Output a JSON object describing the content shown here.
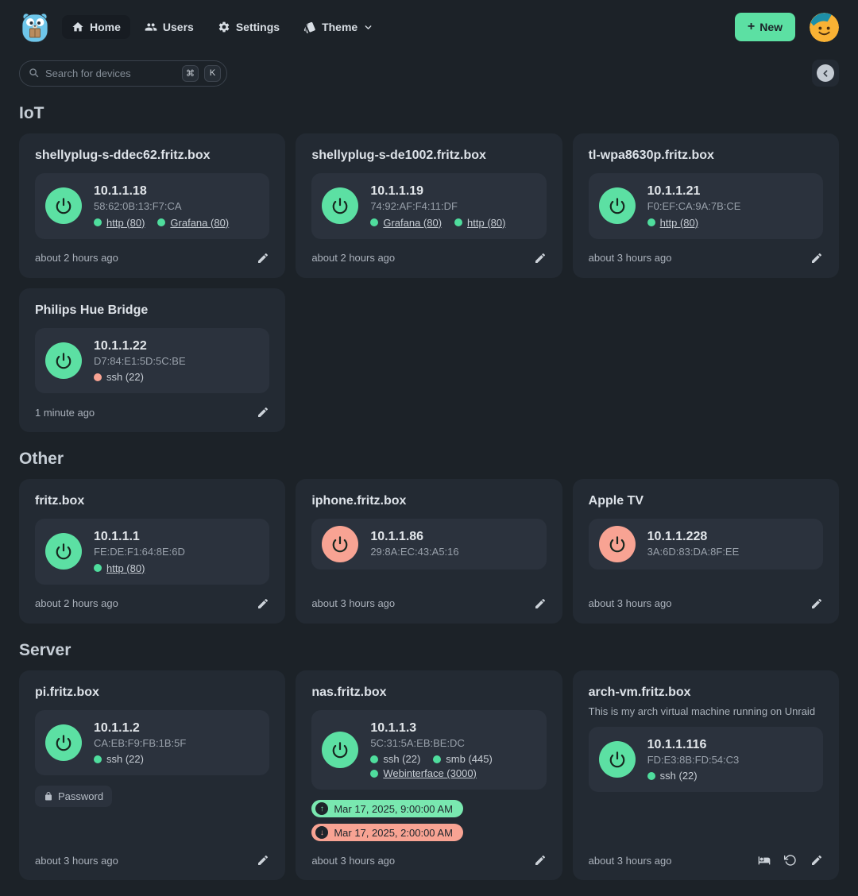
{
  "nav": {
    "items": [
      {
        "label": "Home",
        "icon": "home-icon",
        "active": true
      },
      {
        "label": "Users",
        "icon": "users-icon",
        "active": false
      },
      {
        "label": "Settings",
        "icon": "gear-icon",
        "active": false
      },
      {
        "label": "Theme",
        "icon": "theme-icon",
        "active": false,
        "has_dropdown": true
      }
    ],
    "new_button": {
      "icon": "+",
      "label": "New"
    }
  },
  "search": {
    "placeholder": "Search for devices",
    "shortcut_modifier": "⌘",
    "shortcut_key": "K"
  },
  "colors": {
    "accent_green": "#5ce0a3",
    "accent_salmon": "#f8a393",
    "badge_green": "#79e8b0",
    "badge_salmon": "#f8a393",
    "page_bg": "#1c2228",
    "card_bg": "#232a33",
    "panel_bg": "#2b323d"
  },
  "sections": [
    {
      "title": "IoT",
      "devices": [
        {
          "name": "shellyplug-s-ddec62.fritz.box",
          "ip": "10.1.1.18",
          "mac": "58:62:0B:13:F7:CA",
          "power": "on",
          "ports": [
            {
              "label": "http (80)",
              "status": "open",
              "link": true
            },
            {
              "label": "Grafana (80)",
              "status": "open",
              "link": true
            }
          ],
          "updated": "about 2 hours ago",
          "actions": [
            "edit"
          ]
        },
        {
          "name": "shellyplug-s-de1002.fritz.box",
          "ip": "10.1.1.19",
          "mac": "74:92:AF:F4:11:DF",
          "power": "on",
          "ports": [
            {
              "label": "Grafana (80)",
              "status": "open",
              "link": true
            },
            {
              "label": "http (80)",
              "status": "open",
              "link": true
            }
          ],
          "updated": "about 2 hours ago",
          "actions": [
            "edit"
          ]
        },
        {
          "name": "tl-wpa8630p.fritz.box",
          "ip": "10.1.1.21",
          "mac": "F0:EF:CA:9A:7B:CE",
          "power": "on",
          "ports": [
            {
              "label": "http (80)",
              "status": "open",
              "link": true
            }
          ],
          "updated": "about 3 hours ago",
          "actions": [
            "edit"
          ]
        },
        {
          "name": "Philips Hue Bridge",
          "ip": "10.1.1.22",
          "mac": "D7:84:E1:5D:5C:BE",
          "power": "on",
          "ports": [
            {
              "label": "ssh (22)",
              "status": "closed",
              "link": false
            }
          ],
          "updated": "1 minute ago",
          "actions": [
            "edit"
          ]
        }
      ]
    },
    {
      "title": "Other",
      "devices": [
        {
          "name": "fritz.box",
          "ip": "10.1.1.1",
          "mac": "FE:DE:F1:64:8E:6D",
          "power": "on",
          "ports": [
            {
              "label": "http (80)",
              "status": "open",
              "link": true
            }
          ],
          "updated": "about 2 hours ago",
          "actions": [
            "edit"
          ]
        },
        {
          "name": "iphone.fritz.box",
          "ip": "10.1.1.86",
          "mac": "29:8A:EC:43:A5:16",
          "power": "off",
          "ports": [],
          "updated": "about 3 hours ago",
          "actions": [
            "edit"
          ]
        },
        {
          "name": "Apple TV",
          "ip": "10.1.1.228",
          "mac": "3A:6D:83:DA:8F:EE",
          "power": "off",
          "ports": [],
          "updated": "about 3 hours ago",
          "actions": [
            "edit"
          ]
        }
      ]
    },
    {
      "title": "Server",
      "devices": [
        {
          "name": "pi.fritz.box",
          "ip": "10.1.1.2",
          "mac": "CA:EB:F9:FB:1B:5F",
          "power": "on",
          "ports": [
            {
              "label": "ssh (22)",
              "status": "open",
              "link": false
            }
          ],
          "password_label": "Password",
          "updated": "about 3 hours ago",
          "actions": [
            "edit"
          ]
        },
        {
          "name": "nas.fritz.box",
          "ip": "10.1.1.3",
          "mac": "5C:31:5A:EB:BE:DC",
          "power": "on",
          "ports": [
            {
              "label": "ssh (22)",
              "status": "open",
              "link": false
            },
            {
              "label": "smb (445)",
              "status": "open",
              "link": false
            },
            {
              "label": "Webinterface (3000)",
              "status": "open",
              "link": true
            }
          ],
          "schedules": [
            {
              "type": "wake",
              "label": "Mar 17, 2025, 9:00:00 AM"
            },
            {
              "type": "shutdown",
              "label": "Mar 17, 2025, 2:00:00 AM"
            }
          ],
          "updated": "about 3 hours ago",
          "actions": [
            "edit"
          ]
        },
        {
          "name": "arch-vm.fritz.box",
          "description": "This is my arch virtual machine running on Unraid",
          "ip": "10.1.1.116",
          "mac": "FD:E3:8B:FD:54:C3",
          "power": "on",
          "ports": [
            {
              "label": "ssh (22)",
              "status": "open",
              "link": false
            }
          ],
          "updated": "about 3 hours ago",
          "actions": [
            "sleep",
            "reboot",
            "edit"
          ]
        }
      ]
    }
  ]
}
